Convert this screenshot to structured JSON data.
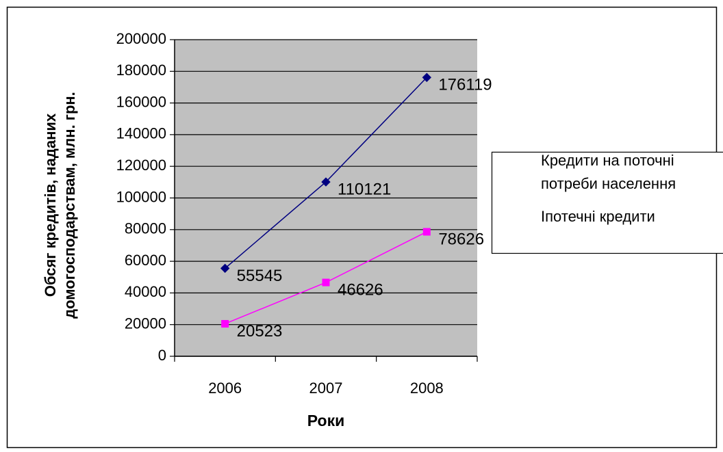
{
  "chart_data": {
    "type": "line",
    "ylabel": "Обсяг кредитів, наданих домогосподарствам, млн. грн.",
    "xlabel": "Роки",
    "categories": [
      "2006",
      "2007",
      "2008"
    ],
    "series": [
      {
        "name": "Кредити на поточні потреби населення",
        "color": "#000080",
        "marker": "diamond",
        "values": [
          55545,
          110121,
          176119
        ]
      },
      {
        "name": "Іпотечні кредити",
        "color": "#ff00ff",
        "marker": "square",
        "values": [
          20523,
          46626,
          78626
        ]
      }
    ],
    "ylim": [
      0,
      200000
    ],
    "yticks": [
      0,
      20000,
      40000,
      60000,
      80000,
      100000,
      120000,
      140000,
      160000,
      180000,
      200000
    ],
    "grid": true,
    "legend": "right",
    "plot_background": "#c0c0c0"
  }
}
